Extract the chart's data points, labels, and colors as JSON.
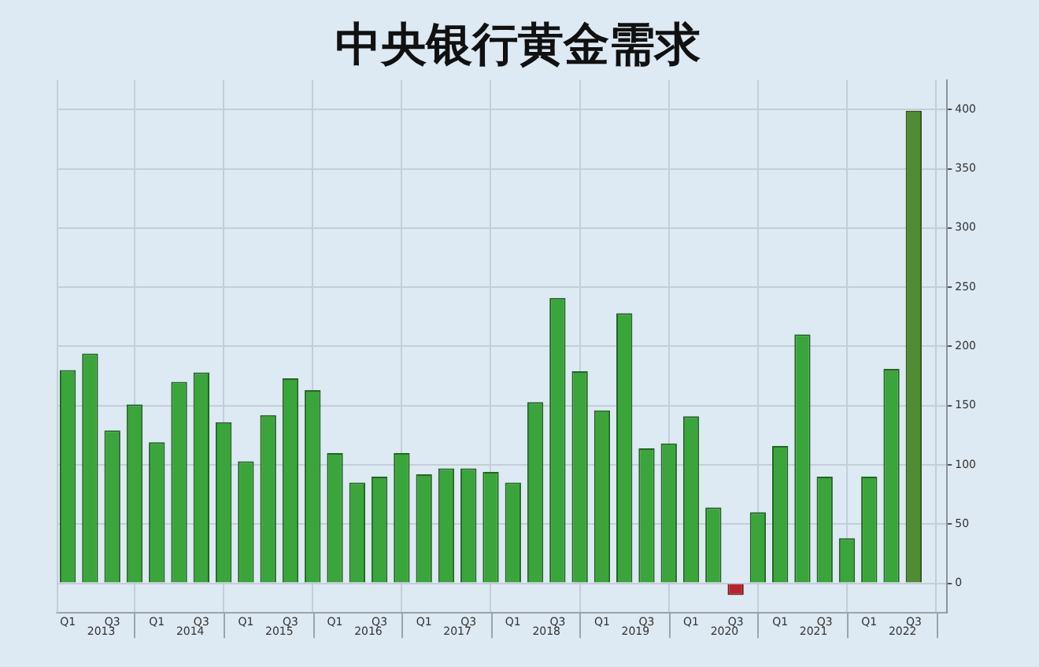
{
  "chart_data": {
    "type": "bar",
    "title": "中央银行黄金需求",
    "categories": [
      "Q1",
      null,
      "Q3",
      null,
      "Q1",
      null,
      "Q3",
      null,
      "Q1",
      null,
      "Q3",
      null,
      "Q1",
      null,
      "Q3",
      null,
      "Q1",
      null,
      "Q3",
      null,
      "Q1",
      null,
      "Q3",
      null,
      "Q1",
      null,
      "Q3",
      null,
      "Q1",
      null,
      "Q3",
      null,
      "Q1",
      null,
      "Q3",
      null,
      "Q1",
      null,
      "Q3",
      null
    ],
    "values": [
      180,
      194,
      129,
      151,
      119,
      170,
      178,
      136,
      103,
      142,
      173,
      163,
      110,
      85,
      90,
      110,
      92,
      97,
      97,
      94,
      85,
      153,
      241,
      179,
      146,
      228,
      114,
      118,
      141,
      64,
      -10,
      60,
      116,
      210,
      90,
      38,
      90,
      181,
      399,
      null
    ],
    "colors": [
      "#3aa53a",
      "#3aa53a",
      "#3aa53a",
      "#3aa53a",
      "#3aa53a",
      "#3aa53a",
      "#3aa53a",
      "#3aa53a",
      "#3aa53a",
      "#3aa53a",
      "#3aa53a",
      "#3aa53a",
      "#3aa53a",
      "#3aa53a",
      "#3aa53a",
      "#3aa53a",
      "#3aa53a",
      "#3aa53a",
      "#3aa53a",
      "#3aa53a",
      "#3aa53a",
      "#3aa53a",
      "#3aa53a",
      "#3aa53a",
      "#3aa53a",
      "#3aa53a",
      "#3aa53a",
      "#3aa53a",
      "#3aa53a",
      "#3aa53a",
      "#b8232f",
      "#3aa53a",
      "#3aa53a",
      "#3aa53a",
      "#3aa53a",
      "#3aa53a",
      "#3aa53a",
      "#3aa53a",
      "#4f8c32",
      "#3aa53a"
    ],
    "ylim": [
      -25,
      425
    ],
    "yticks": [
      0,
      50,
      100,
      150,
      200,
      250,
      300,
      350,
      400
    ],
    "grid": true,
    "legend": false,
    "annotations": [
      "2013",
      "2014",
      "2015",
      "2016",
      "2017",
      "2018",
      "2019",
      "2020",
      "2021",
      "2022"
    ]
  }
}
